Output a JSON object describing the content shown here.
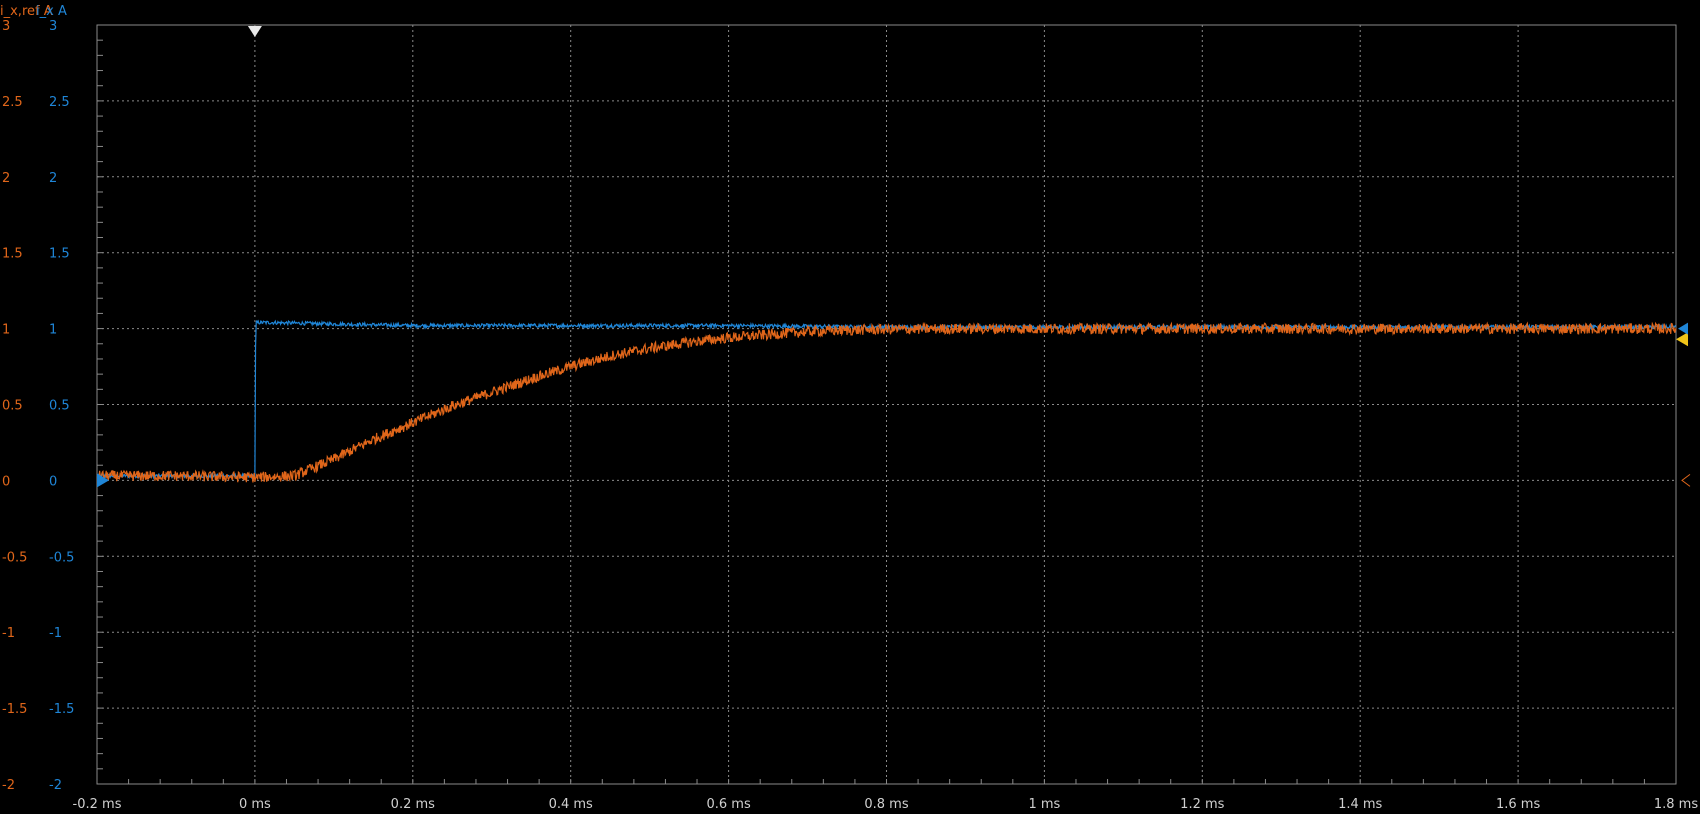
{
  "header": {
    "orange_label": "i_x,ref A",
    "blue_label": "i_x A"
  },
  "colors": {
    "background": "#000000",
    "grid": "#8a8a8a",
    "orange": "#e0661a",
    "blue": "#1f86d8",
    "axis_text": "#d0d0d0",
    "trigger_marker": "#e8e8e8",
    "level_marker": "#f0c419"
  },
  "chart_data": {
    "type": "line",
    "xlabel": "",
    "ylabel": "",
    "x_unit": "ms",
    "xlim": [
      -0.2,
      1.8
    ],
    "ylim": [
      -2,
      3
    ],
    "grid": true,
    "x_ticks": [
      -0.2,
      0,
      0.2,
      0.4,
      0.6,
      0.8,
      1.0,
      1.2,
      1.4,
      1.6,
      1.8
    ],
    "x_tick_labels": [
      "-0.2 ms",
      "0 ms",
      "0.2 ms",
      "0.4 ms",
      "0.6 ms",
      "0.8 ms",
      "1 ms",
      "1.2 ms",
      "1.4 ms",
      "1.6 ms",
      "1.8 ms"
    ],
    "y_ticks": [
      3,
      2.5,
      2,
      1.5,
      1,
      0.5,
      0,
      -0.5,
      -1,
      -1.5,
      -2
    ],
    "y_tick_labels": [
      "3",
      "2.5",
      "2",
      "1.5",
      "1",
      "0.5",
      "0",
      "-0.5",
      "-1",
      "-1.5",
      "-2"
    ],
    "trigger_time": 0,
    "series": [
      {
        "name": "i_x A",
        "color": "#1f86d8",
        "x": [
          -0.2,
          -0.001,
          0.0,
          0.001,
          0.02,
          0.1,
          0.2,
          0.4,
          0.6,
          0.8,
          1.0,
          1.2,
          1.4,
          1.6,
          1.8
        ],
        "y": [
          0.03,
          0.03,
          0.03,
          1.04,
          1.04,
          1.03,
          1.02,
          1.02,
          1.02,
          1.01,
          1.01,
          1.01,
          1.01,
          1.01,
          1.01
        ]
      },
      {
        "name": "i_x,ref A",
        "color": "#e0661a",
        "x": [
          -0.2,
          -0.1,
          0.0,
          0.05,
          0.1,
          0.15,
          0.2,
          0.25,
          0.3,
          0.35,
          0.4,
          0.45,
          0.5,
          0.55,
          0.6,
          0.65,
          0.7,
          0.75,
          0.8,
          0.9,
          1.0,
          1.2,
          1.4,
          1.6,
          1.8
        ],
        "y": [
          0.03,
          0.03,
          0.02,
          0.03,
          0.14,
          0.27,
          0.38,
          0.49,
          0.58,
          0.67,
          0.75,
          0.82,
          0.87,
          0.91,
          0.94,
          0.96,
          0.98,
          0.99,
          0.995,
          1.0,
          1.0,
          1.0,
          1.0,
          1.0,
          1.0
        ]
      }
    ]
  }
}
